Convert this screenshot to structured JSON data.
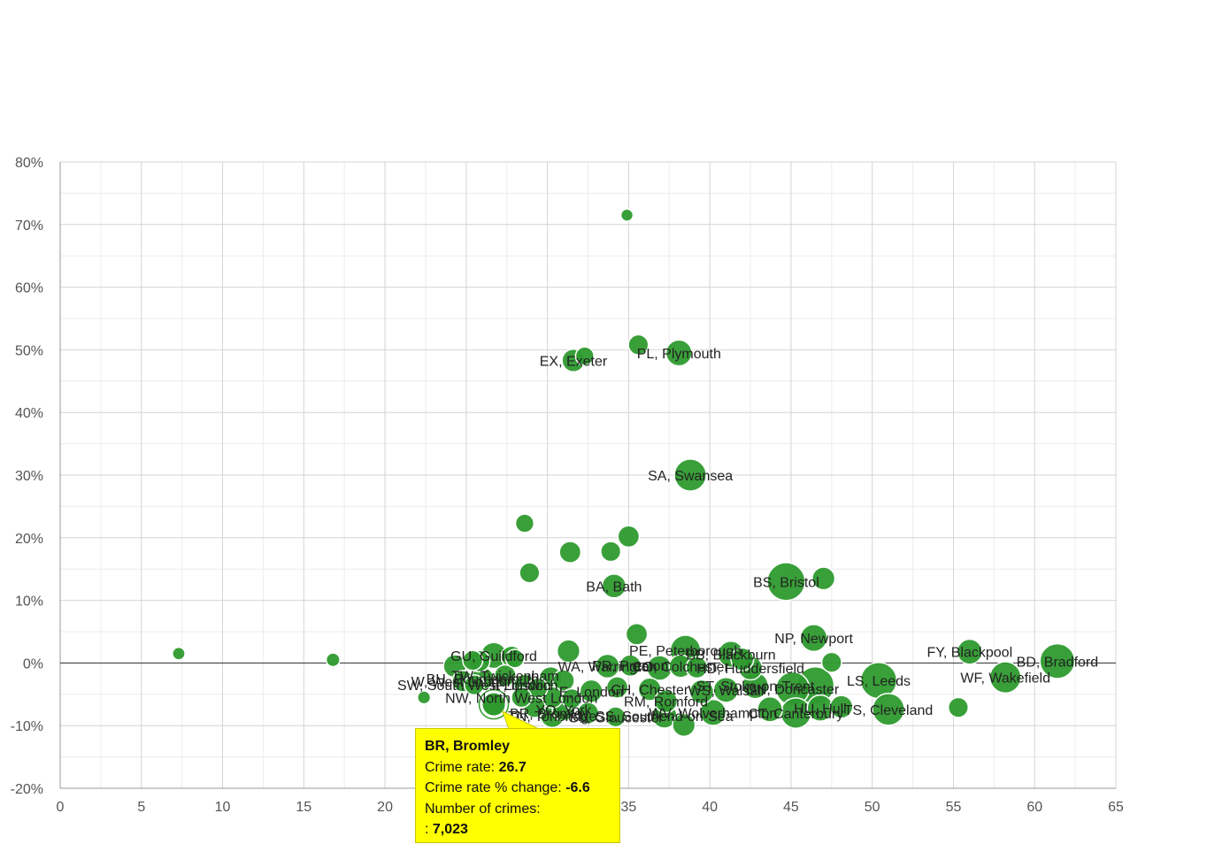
{
  "colors": {
    "bubble": "#2e9a2e",
    "bubble_stroke": "#ffffff",
    "grid": "#d4d4d4",
    "grid_minor": "#ececec",
    "zero_line": "#333333",
    "tooltip_bg": "#ffff00"
  },
  "chart_data": {
    "type": "scatter",
    "title": "",
    "xlabel": "",
    "ylabel": "",
    "xlim": [
      0,
      65
    ],
    "ylim": [
      -20,
      80
    ],
    "x_ticks": [
      0,
      5,
      10,
      15,
      20,
      25,
      30,
      35,
      40,
      45,
      50,
      55,
      60,
      65
    ],
    "y_ticks": [
      -20,
      -10,
      0,
      10,
      20,
      30,
      40,
      50,
      60,
      70,
      80
    ],
    "x_tick_labels": [
      "0",
      "5",
      "10",
      "15",
      "20",
      "25",
      "30",
      "35",
      "40",
      "45",
      "50",
      "55",
      "60",
      "65"
    ],
    "y_tick_labels": [
      "-20%",
      "-10%",
      "0%",
      "10%",
      "20%",
      "30%",
      "40%",
      "50%",
      "60%",
      "70%",
      "80%"
    ],
    "bubble_size_measure": "Number of crimes",
    "points": [
      {
        "x": 34.9,
        "y": 71.5,
        "crimes": 500
      },
      {
        "x": 7.3,
        "y": 1.5,
        "crimes": 600
      },
      {
        "x": 16.8,
        "y": 0.5,
        "crimes": 900
      },
      {
        "x": 22.4,
        "y": -5.5,
        "crimes": 700
      },
      {
        "x": 35.6,
        "y": 50.8,
        "crimes": 4000
      },
      {
        "x": 38.1,
        "y": 49.5,
        "crimes": 9000,
        "label": "PL, Plymouth"
      },
      {
        "x": 31.6,
        "y": 48.3,
        "crimes": 6000,
        "label": "EX, Exeter"
      },
      {
        "x": 32.3,
        "y": 49.0,
        "crimes": 3000
      },
      {
        "x": 38.8,
        "y": 30.0,
        "crimes": 16000,
        "label": "SA, Swansea"
      },
      {
        "x": 28.6,
        "y": 22.3,
        "crimes": 3000
      },
      {
        "x": 35.0,
        "y": 20.2,
        "crimes": 5000
      },
      {
        "x": 31.4,
        "y": 17.7,
        "crimes": 5000
      },
      {
        "x": 33.9,
        "y": 17.8,
        "crimes": 4000
      },
      {
        "x": 28.9,
        "y": 14.4,
        "crimes": 4000
      },
      {
        "x": 34.1,
        "y": 12.3,
        "crimes": 7000,
        "label": "BA, Bath"
      },
      {
        "x": 44.7,
        "y": 13.0,
        "crimes": 25000,
        "label": "BS, Bristol"
      },
      {
        "x": 47.0,
        "y": 13.5,
        "crimes": 6000
      },
      {
        "x": 46.4,
        "y": 4.0,
        "crimes": 10000,
        "label": "NP, Newport"
      },
      {
        "x": 35.5,
        "y": 4.6,
        "crimes": 5000
      },
      {
        "x": 56.0,
        "y": 1.8,
        "crimes": 8000,
        "label": "FY, Blackpool"
      },
      {
        "x": 61.4,
        "y": 0.3,
        "crimes": 20000,
        "label": "BD, Bradford"
      },
      {
        "x": 58.2,
        "y": -2.3,
        "crimes": 15000,
        "label": "WF, Wakefield"
      },
      {
        "x": 50.4,
        "y": -2.8,
        "crimes": 22000,
        "label": "LS, Leeds"
      },
      {
        "x": 51.0,
        "y": -7.4,
        "crimes": 16000,
        "label": "TS, Cleveland"
      },
      {
        "x": 55.3,
        "y": -7.1,
        "crimes": 4000
      },
      {
        "x": 47.5,
        "y": 0.1,
        "crimes": 4000
      },
      {
        "x": 31.3,
        "y": 1.9,
        "crimes": 6000
      },
      {
        "x": 26.7,
        "y": 1.2,
        "crimes": 9000,
        "label": "GU, Guildford"
      },
      {
        "x": 27.8,
        "y": 1.0,
        "crimes": 5000
      },
      {
        "x": 25.8,
        "y": 0.3,
        "crimes": 5000
      },
      {
        "x": 24.3,
        "y": -0.5,
        "crimes": 6000
      },
      {
        "x": 25.4,
        "y": 0.4,
        "crimes": 4000
      },
      {
        "x": 28.0,
        "y": 0.7,
        "crimes": 3000
      },
      {
        "x": 38.5,
        "y": 2.0,
        "crimes": 14000,
        "label": "PE, Peterborough"
      },
      {
        "x": 41.3,
        "y": 1.4,
        "crimes": 9000,
        "label": "BB, Blackburn"
      },
      {
        "x": 42.0,
        "y": 0.6,
        "crimes": 6000
      },
      {
        "x": 33.7,
        "y": -0.5,
        "crimes": 7000,
        "label": "WA, Warrington"
      },
      {
        "x": 35.1,
        "y": -0.4,
        "crimes": 5000,
        "label": "PR, Preston"
      },
      {
        "x": 36.9,
        "y": -0.8,
        "crimes": 8000
      },
      {
        "x": 38.2,
        "y": -0.5,
        "crimes": 6000,
        "label": "CO, Colchester"
      },
      {
        "x": 39.2,
        "y": -0.7,
        "crimes": 5000
      },
      {
        "x": 42.5,
        "y": -0.8,
        "crimes": 7000,
        "label": "HD, Huddersfield"
      },
      {
        "x": 26.0,
        "y": -2.5,
        "crimes": 6000,
        "label": "BH, Bournemouth"
      },
      {
        "x": 27.4,
        "y": -2.0,
        "crimes": 5000,
        "label": "TW, Twickenham"
      },
      {
        "x": 30.2,
        "y": -2.4,
        "crimes": 6000
      },
      {
        "x": 24.8,
        "y": -2.9,
        "crimes": 5000,
        "label": "W, West London"
      },
      {
        "x": 25.5,
        "y": -3.5,
        "crimes": 4000,
        "label": "SW, South West London"
      },
      {
        "x": 28.6,
        "y": -3.5,
        "crimes": 5000,
        "label": "IP, Ipswich"
      },
      {
        "x": 29.4,
        "y": -4.0,
        "crimes": 4000
      },
      {
        "x": 31.0,
        "y": -2.8,
        "crimes": 5000
      },
      {
        "x": 32.7,
        "y": -4.5,
        "crimes": 6000,
        "label": "E, London"
      },
      {
        "x": 34.3,
        "y": -3.9,
        "crimes": 5000
      },
      {
        "x": 36.3,
        "y": -4.2,
        "crimes": 6000,
        "label": "CH, Chester"
      },
      {
        "x": 39.5,
        "y": -4.6,
        "crimes": 7000
      },
      {
        "x": 41.0,
        "y": -4.3,
        "crimes": 8000,
        "label": "WS, Walsall"
      },
      {
        "x": 42.8,
        "y": -3.6,
        "crimes": 9000,
        "label": "ST, Stoke-on-Trent"
      },
      {
        "x": 45.1,
        "y": -4.1,
        "crimes": 18000,
        "label": "DN, Doncaster"
      },
      {
        "x": 46.5,
        "y": -3.6,
        "crimes": 24000
      },
      {
        "x": 28.4,
        "y": -5.5,
        "crimes": 4000,
        "label": "NW, North West London"
      },
      {
        "x": 30.3,
        "y": -5.5,
        "crimes": 5000
      },
      {
        "x": 31.5,
        "y": -5.7,
        "crimes": 4000
      },
      {
        "x": 37.3,
        "y": -6.1,
        "crimes": 6000,
        "label": "RM, Romford"
      },
      {
        "x": 26.7,
        "y": -6.6,
        "crimes": 7023,
        "label": "BR, Bromley"
      },
      {
        "x": 29.2,
        "y": -7.0,
        "crimes": 5000
      },
      {
        "x": 31.0,
        "y": -7.4,
        "crimes": 6000,
        "label": "YO, York"
      },
      {
        "x": 30.3,
        "y": -8.4,
        "crimes": 7000,
        "label": "TN, Tonbridge"
      },
      {
        "x": 32.5,
        "y": -8.0,
        "crimes": 5000
      },
      {
        "x": 34.2,
        "y": -8.6,
        "crimes": 4000,
        "label": "GL, Gloucester"
      },
      {
        "x": 37.2,
        "y": -8.4,
        "crimes": 8000,
        "label": "SS, Southend-on-Sea"
      },
      {
        "x": 38.4,
        "y": -9.9,
        "crimes": 6000
      },
      {
        "x": 40.2,
        "y": -7.9,
        "crimes": 9000,
        "label": "WV, Wolverhampton"
      },
      {
        "x": 43.7,
        "y": -7.4,
        "crimes": 8000
      },
      {
        "x": 45.3,
        "y": -8.0,
        "crimes": 14000,
        "label": "CT, Canterbury"
      },
      {
        "x": 46.8,
        "y": -7.2,
        "crimes": 9000,
        "label": "HU, Hull"
      },
      {
        "x": 48.1,
        "y": -7.0,
        "crimes": 6000
      }
    ],
    "selected_point": "BR, Bromley"
  },
  "tooltip": {
    "title": "BR, Bromley",
    "rate_label": "Crime rate:",
    "rate_value": "26.7",
    "change_label": "Crime rate % change:",
    "change_value": "-6.6",
    "count_label": "Number of crimes:",
    "count_prefix": ":",
    "count_value": "7,023"
  }
}
